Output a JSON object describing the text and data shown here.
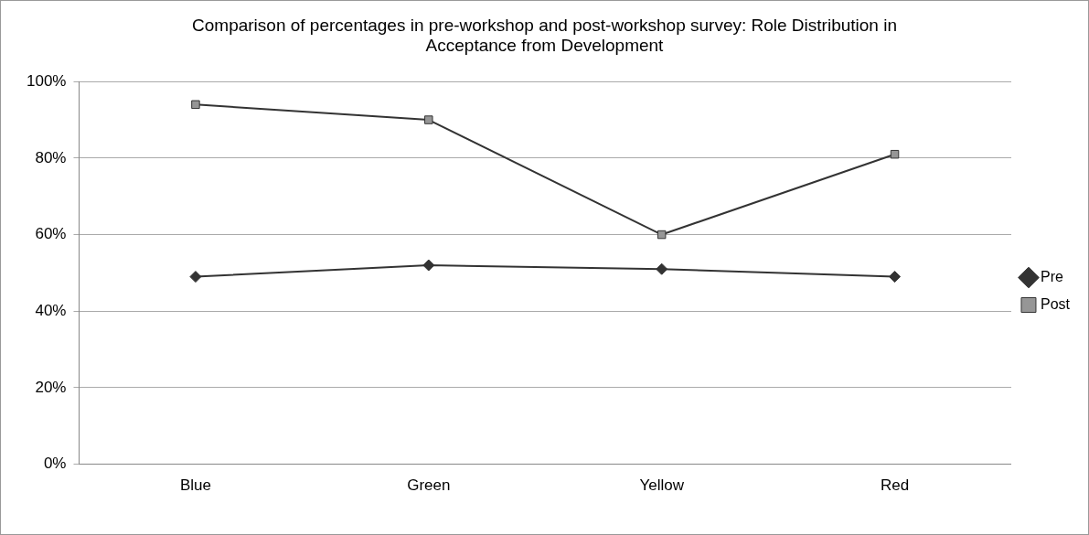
{
  "chart_data": {
    "type": "line",
    "title": "Comparison of percentages in pre-workshop and post-workshop survey: Role Distribution in Acceptance from Development",
    "categories": [
      "Blue",
      "Green",
      "Yellow",
      "Red"
    ],
    "series": [
      {
        "name": "Pre",
        "color": "#333333",
        "marker": "diamond",
        "values": [
          49,
          52,
          51,
          49
        ]
      },
      {
        "name": "Post",
        "color": "#969696",
        "marker": "square",
        "values": [
          94,
          90,
          60,
          81
        ]
      }
    ],
    "ylim": [
      0,
      100
    ],
    "yticks": [
      {
        "value": 0,
        "label": "0%"
      },
      {
        "value": 20,
        "label": "20%"
      },
      {
        "value": 40,
        "label": "40%"
      },
      {
        "value": 60,
        "label": "60%"
      },
      {
        "value": 80,
        "label": "80%"
      },
      {
        "value": 100,
        "label": "100%"
      }
    ],
    "grid": "y",
    "legend": "right",
    "line_style": "solid"
  }
}
